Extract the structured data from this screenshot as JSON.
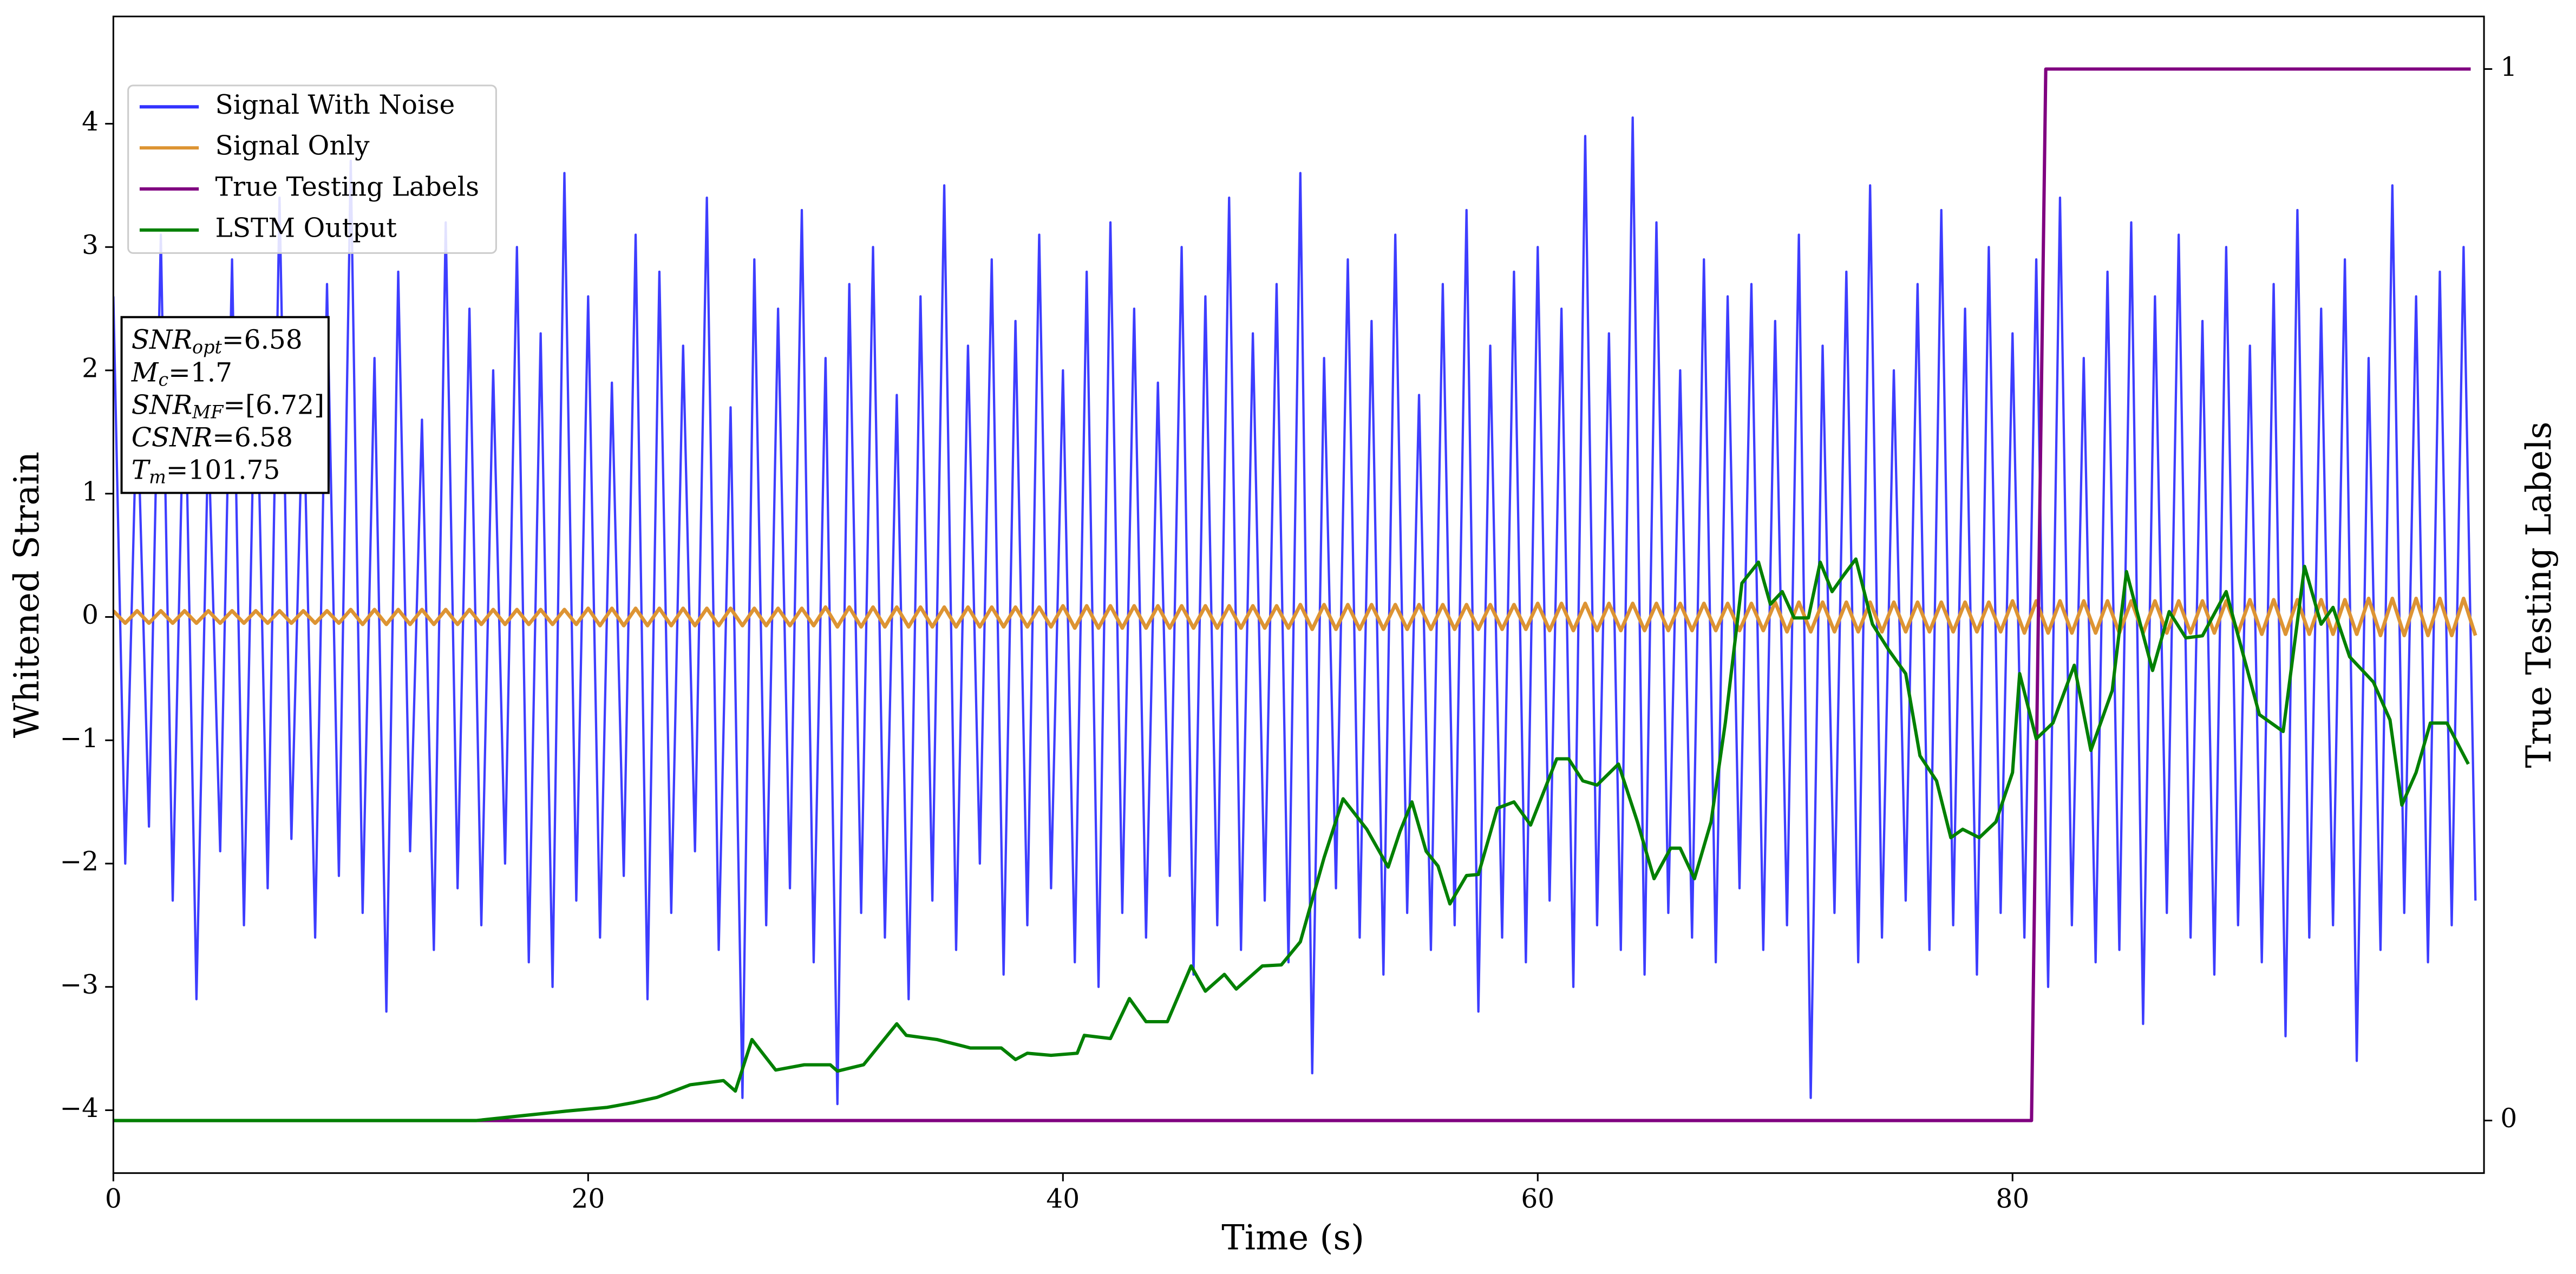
{
  "chart_data": {
    "type": "line",
    "xlabel": "Time (s)",
    "ylabel": "Whitened Strain",
    "y2label": "True Testing Labels",
    "xlim": [
      0,
      99.86
    ],
    "xticks": [
      0,
      20,
      40,
      60,
      80
    ],
    "ylim": [
      -4.51,
      4.87
    ],
    "yticks": [
      {
        "value": -4,
        "label": "−4"
      },
      {
        "value": -3,
        "label": "−3"
      },
      {
        "value": -2,
        "label": "−2"
      },
      {
        "value": -1,
        "label": "−1"
      },
      0,
      1,
      2,
      3,
      4
    ],
    "y2lim": [
      -0.05,
      1.05
    ],
    "y2ticks": [
      0,
      1
    ],
    "legend_loc": "upper left",
    "x": [
      0,
      0.5,
      1,
      1.5,
      2,
      2.5,
      3,
      3.5,
      4,
      4.5,
      5,
      5.5,
      6,
      6.5,
      7,
      7.5,
      8,
      8.5,
      9,
      9.5,
      10,
      10.5,
      11,
      11.5,
      12,
      12.5,
      13,
      13.5,
      14,
      14.5,
      15,
      15.5,
      16,
      16.5,
      17,
      17.5,
      18,
      18.5,
      19,
      19.5,
      20,
      20.5,
      21,
      21.5,
      22,
      22.5,
      23,
      23.5,
      24,
      24.5,
      25,
      25.5,
      26,
      26.5,
      27,
      27.5,
      28,
      28.5,
      29,
      29.5,
      30,
      30.5,
      31,
      31.5,
      32,
      32.5,
      33,
      33.5,
      34,
      34.5,
      35,
      35.5,
      36,
      36.5,
      37,
      37.5,
      38,
      38.5,
      39,
      39.5,
      40,
      40.5,
      41,
      41.5,
      42,
      42.5,
      43,
      43.5,
      44,
      44.5,
      45,
      45.5,
      46,
      46.5,
      47,
      47.5,
      48,
      48.5,
      49,
      49.5,
      50,
      50.5,
      51,
      51.5,
      52,
      52.5,
      53,
      53.5,
      54,
      54.5,
      55,
      55.5,
      56,
      56.5,
      57,
      57.5,
      58,
      58.5,
      59,
      59.5,
      60,
      60.5,
      61,
      61.5,
      62,
      62.5,
      63,
      63.5,
      64,
      64.5,
      65,
      65.5,
      66,
      66.5,
      67,
      67.5,
      68,
      68.5,
      69,
      69.5,
      70,
      70.5,
      71,
      71.5,
      72,
      72.5,
      73,
      73.5,
      74,
      74.5,
      75,
      75.5,
      76,
      76.5,
      77,
      77.5,
      78,
      78.5,
      79,
      79.5,
      80,
      80.5,
      81,
      81.5,
      82,
      82.5,
      83,
      83.5,
      84,
      84.5,
      85,
      85.5,
      86,
      86.5,
      87,
      87.5,
      88,
      88.5,
      89,
      89.5,
      90,
      90.5,
      91,
      91.5,
      92,
      92.5,
      93,
      93.5,
      94,
      94.5,
      95,
      95.5,
      96,
      96.5,
      97,
      97.5,
      98,
      98.5,
      99,
      99.5
    ],
    "series": [
      {
        "name": "Signal With Noise",
        "color": "#3333ff",
        "values": [
          2.6,
          -2.0,
          1.8,
          -1.7,
          3.1,
          -2.3,
          2.2,
          -3.1,
          1.5,
          -1.9,
          2.9,
          -2.5,
          2.4,
          -2.2,
          3.4,
          -1.8,
          1.9,
          -2.6,
          2.7,
          -2.1,
          3.7,
          -2.4,
          2.1,
          -3.2,
          2.8,
          -1.9,
          1.6,
          -2.7,
          3.2,
          -2.2,
          2.5,
          -2.5,
          2.0,
          -2.0,
          3.0,
          -2.8,
          2.3,
          -3.0,
          3.6,
          -2.3,
          2.6,
          -2.6,
          1.9,
          -2.1,
          3.1,
          -3.1,
          2.8,
          -2.4,
          2.2,
          -1.9,
          3.4,
          -2.7,
          1.7,
          -3.9,
          2.9,
          -2.5,
          2.5,
          -2.2,
          3.3,
          -2.8,
          2.1,
          -3.95,
          2.7,
          -2.4,
          3.0,
          -2.6,
          1.8,
          -3.1,
          2.6,
          -2.3,
          3.5,
          -2.7,
          2.2,
          -2.0,
          2.9,
          -2.9,
          2.4,
          -2.5,
          3.1,
          -2.2,
          2.0,
          -2.8,
          2.8,
          -3.0,
          3.2,
          -2.4,
          2.5,
          -2.6,
          1.9,
          -2.1,
          3.0,
          -2.9,
          2.6,
          -2.5,
          3.4,
          -2.7,
          2.3,
          -2.3,
          2.7,
          -2.8,
          3.6,
          -3.7,
          2.1,
          -2.2,
          2.9,
          -2.6,
          2.4,
          -2.9,
          3.1,
          -2.4,
          1.8,
          -2.7,
          2.7,
          -2.5,
          3.3,
          -3.2,
          2.2,
          -2.6,
          2.8,
          -2.8,
          3.0,
          -2.3,
          2.5,
          -3.0,
          3.9,
          -2.5,
          2.3,
          -2.7,
          4.05,
          -2.9,
          3.2,
          -2.4,
          2.0,
          -2.6,
          2.9,
          -2.8,
          2.6,
          -2.2,
          2.7,
          -2.7,
          2.4,
          -2.5,
          3.1,
          -3.9,
          2.2,
          -2.4,
          2.8,
          -2.8,
          3.5,
          -2.6,
          2.0,
          -2.3,
          2.7,
          -2.7,
          3.3,
          -2.5,
          2.5,
          -2.9,
          3.0,
          -2.4,
          2.3,
          -2.6,
          2.9,
          -3.0,
          3.4,
          -2.5,
          2.1,
          -2.8,
          2.8,
          -2.7,
          3.2,
          -3.3,
          2.6,
          -2.4,
          3.1,
          -2.6,
          2.4,
          -2.9,
          3.0,
          -2.5,
          2.2,
          -2.8,
          2.7,
          -3.4,
          3.3,
          -2.6,
          2.5,
          -2.5,
          2.9,
          -3.6,
          2.1,
          -2.7,
          3.5,
          -2.4,
          2.6,
          -2.8,
          2.8,
          -2.5,
          3.0,
          -2.3
        ]
      },
      {
        "name": "Signal Only",
        "color": "#dd9433",
        "values": [
          0.05,
          -0.05,
          0.05,
          -0.05,
          0.05,
          -0.05,
          0.05,
          -0.05,
          0.05,
          -0.05,
          0.05,
          -0.05,
          0.05,
          -0.05,
          0.05,
          -0.05,
          0.05,
          -0.05,
          0.05,
          -0.05,
          0.06,
          -0.06,
          0.06,
          -0.06,
          0.06,
          -0.06,
          0.06,
          -0.06,
          0.06,
          -0.06,
          0.06,
          -0.06,
          0.06,
          -0.06,
          0.06,
          -0.06,
          0.06,
          -0.06,
          0.06,
          -0.06,
          0.07,
          -0.07,
          0.07,
          -0.07,
          0.07,
          -0.07,
          0.07,
          -0.07,
          0.07,
          -0.07,
          0.07,
          -0.07,
          0.07,
          -0.07,
          0.07,
          -0.07,
          0.07,
          -0.07,
          0.07,
          -0.07,
          0.08,
          -0.08,
          0.08,
          -0.08,
          0.08,
          -0.08,
          0.08,
          -0.08,
          0.08,
          -0.08,
          0.08,
          -0.08,
          0.08,
          -0.08,
          0.08,
          -0.08,
          0.08,
          -0.08,
          0.08,
          -0.08,
          0.09,
          -0.09,
          0.09,
          -0.09,
          0.09,
          -0.09,
          0.09,
          -0.09,
          0.09,
          -0.09,
          0.09,
          -0.09,
          0.09,
          -0.09,
          0.09,
          -0.09,
          0.09,
          -0.09,
          0.09,
          -0.09,
          0.1,
          -0.1,
          0.1,
          -0.1,
          0.1,
          -0.1,
          0.1,
          -0.1,
          0.1,
          -0.1,
          0.1,
          -0.1,
          0.1,
          -0.1,
          0.1,
          -0.1,
          0.1,
          -0.1,
          0.1,
          -0.1,
          0.11,
          -0.11,
          0.11,
          -0.11,
          0.11,
          -0.11,
          0.11,
          -0.11,
          0.11,
          -0.11,
          0.11,
          -0.11,
          0.11,
          -0.11,
          0.11,
          -0.11,
          0.11,
          -0.11,
          0.11,
          -0.11,
          0.12,
          -0.12,
          0.12,
          -0.12,
          0.12,
          -0.12,
          0.12,
          -0.12,
          0.12,
          -0.12,
          0.12,
          -0.12,
          0.12,
          -0.12,
          0.12,
          -0.12,
          0.12,
          -0.12,
          0.12,
          -0.12,
          0.13,
          -0.13,
          0.13,
          -0.13,
          0.13,
          -0.13,
          0.13,
          -0.13,
          0.13,
          -0.13,
          0.13,
          -0.13,
          0.13,
          -0.13,
          0.13,
          -0.13,
          0.13,
          -0.13,
          0.13,
          -0.13,
          0.14,
          -0.14,
          0.14,
          -0.14,
          0.14,
          -0.14,
          0.14,
          -0.14,
          0.14,
          -0.14,
          0.15,
          -0.15,
          0.15,
          -0.15,
          0.15,
          -0.15,
          0.15,
          -0.15,
          0.15,
          -0.15
        ]
      },
      {
        "name": "True Testing Labels",
        "color": "#800080",
        "axis": "y2",
        "x": [
          0,
          80.8,
          81.4,
          99.3
        ],
        "values": [
          0,
          0,
          1,
          1
        ]
      },
      {
        "name": "LSTM Output",
        "color": "#008000",
        "axis": "y2",
        "x": [
          0,
          15.3,
          17.4,
          19.1,
          20.8,
          21.9,
          22.9,
          24.3,
          25.7,
          26.2,
          26.9,
          27.9,
          29.1,
          30.2,
          30.5,
          31.6,
          33.0,
          33.4,
          34.7,
          36.1,
          37.4,
          38.0,
          38.5,
          39.5,
          40.6,
          40.9,
          42.0,
          42.8,
          43.5,
          44.4,
          45.4,
          46.0,
          46.8,
          47.3,
          48.4,
          49.2,
          50.0,
          51.0,
          51.8,
          52.8,
          53.7,
          54.2,
          54.7,
          55.3,
          55.8,
          56.3,
          57.0,
          57.5,
          58.3,
          59.0,
          59.7,
          60.8,
          61.3,
          61.9,
          62.5,
          63.4,
          64.2,
          64.9,
          65.6,
          66.0,
          66.6,
          67.3,
          67.9,
          68.6,
          69.3,
          69.8,
          70.3,
          70.8,
          71.4,
          71.9,
          72.4,
          72.9,
          73.4,
          74.1,
          74.8,
          75.5,
          76.1,
          76.8,
          77.4,
          77.9,
          78.6,
          79.3,
          80.0,
          80.3,
          81.0,
          81.7,
          82.6,
          83.3,
          84.2,
          84.8,
          85.9,
          86.6,
          87.3,
          88.0,
          89.0,
          90.4,
          91.4,
          92.3,
          93.0,
          93.5,
          94.2,
          95.2,
          95.9,
          96.4,
          97.0,
          97.6,
          98.3,
          99.2
        ],
        "values": [
          0,
          0,
          0.005,
          0.009,
          0.0125,
          0.017,
          0.022,
          0.034,
          0.038,
          0.028,
          0.077,
          0.048,
          0.053,
          0.053,
          0.047,
          0.053,
          0.092,
          0.081,
          0.077,
          0.069,
          0.069,
          0.058,
          0.064,
          0.062,
          0.064,
          0.081,
          0.078,
          0.116,
          0.094,
          0.094,
          0.147,
          0.123,
          0.139,
          0.125,
          0.147,
          0.148,
          0.17,
          0.25,
          0.306,
          0.277,
          0.241,
          0.275,
          0.303,
          0.256,
          0.242,
          0.206,
          0.233,
          0.234,
          0.297,
          0.303,
          0.281,
          0.344,
          0.344,
          0.323,
          0.319,
          0.339,
          0.284,
          0.23,
          0.259,
          0.259,
          0.23,
          0.284,
          0.378,
          0.511,
          0.531,
          0.491,
          0.503,
          0.478,
          0.478,
          0.531,
          0.503,
          0.519,
          0.534,
          0.472,
          0.447,
          0.425,
          0.347,
          0.323,
          0.269,
          0.277,
          0.269,
          0.284,
          0.331,
          0.425,
          0.363,
          0.378,
          0.433,
          0.352,
          0.409,
          0.522,
          0.428,
          0.484,
          0.459,
          0.461,
          0.503,
          0.386,
          0.37,
          0.527,
          0.472,
          0.488,
          0.441,
          0.417,
          0.381,
          0.3,
          0.331,
          0.378,
          0.378,
          0.339
        ]
      }
    ],
    "stats": [
      {
        "symbol": "SNR",
        "subscript": "opt",
        "text": "=6.58"
      },
      {
        "symbol": "M",
        "subscript": "c",
        "text": "=1.7"
      },
      {
        "symbol": "SNR",
        "subscript": "MF",
        "text": "=[6.72]"
      },
      {
        "symbol": "CSNR",
        "text": "=6.58"
      },
      {
        "symbol": "T",
        "subscript": "m",
        "text": "=101.75"
      }
    ]
  }
}
